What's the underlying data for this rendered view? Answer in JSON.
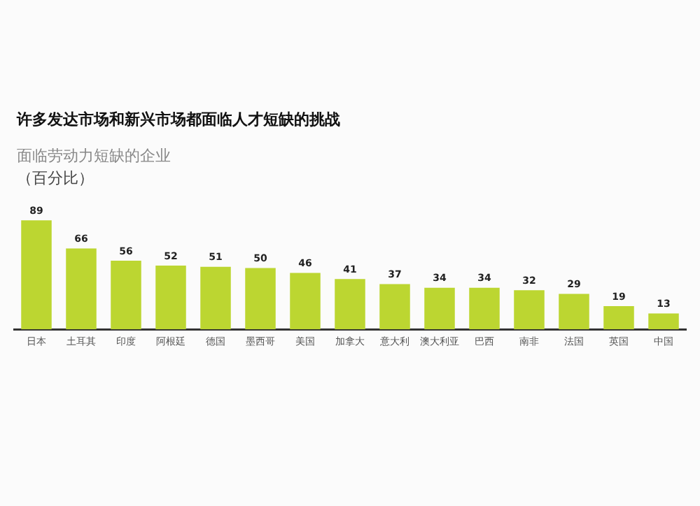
{
  "chart_data": {
    "type": "bar",
    "title": "许多发达市场和新兴市场都面临人才短缺的挑战",
    "subtitle": "面临劳动力短缺的企业",
    "ylabel": "（百分比）",
    "categories": [
      "日本",
      "土耳其",
      "印度",
      "阿根廷",
      "德国",
      "墨西哥",
      "美国",
      "加拿大",
      "意大利",
      "澳大利亚",
      "巴西",
      "南非",
      "法国",
      "英国",
      "中国"
    ],
    "values": [
      89,
      66,
      56,
      52,
      51,
      50,
      46,
      41,
      37,
      34,
      34,
      32,
      29,
      19,
      13
    ],
    "color": "#bcd631",
    "data_labels": true,
    "grid": false,
    "legend": false
  }
}
